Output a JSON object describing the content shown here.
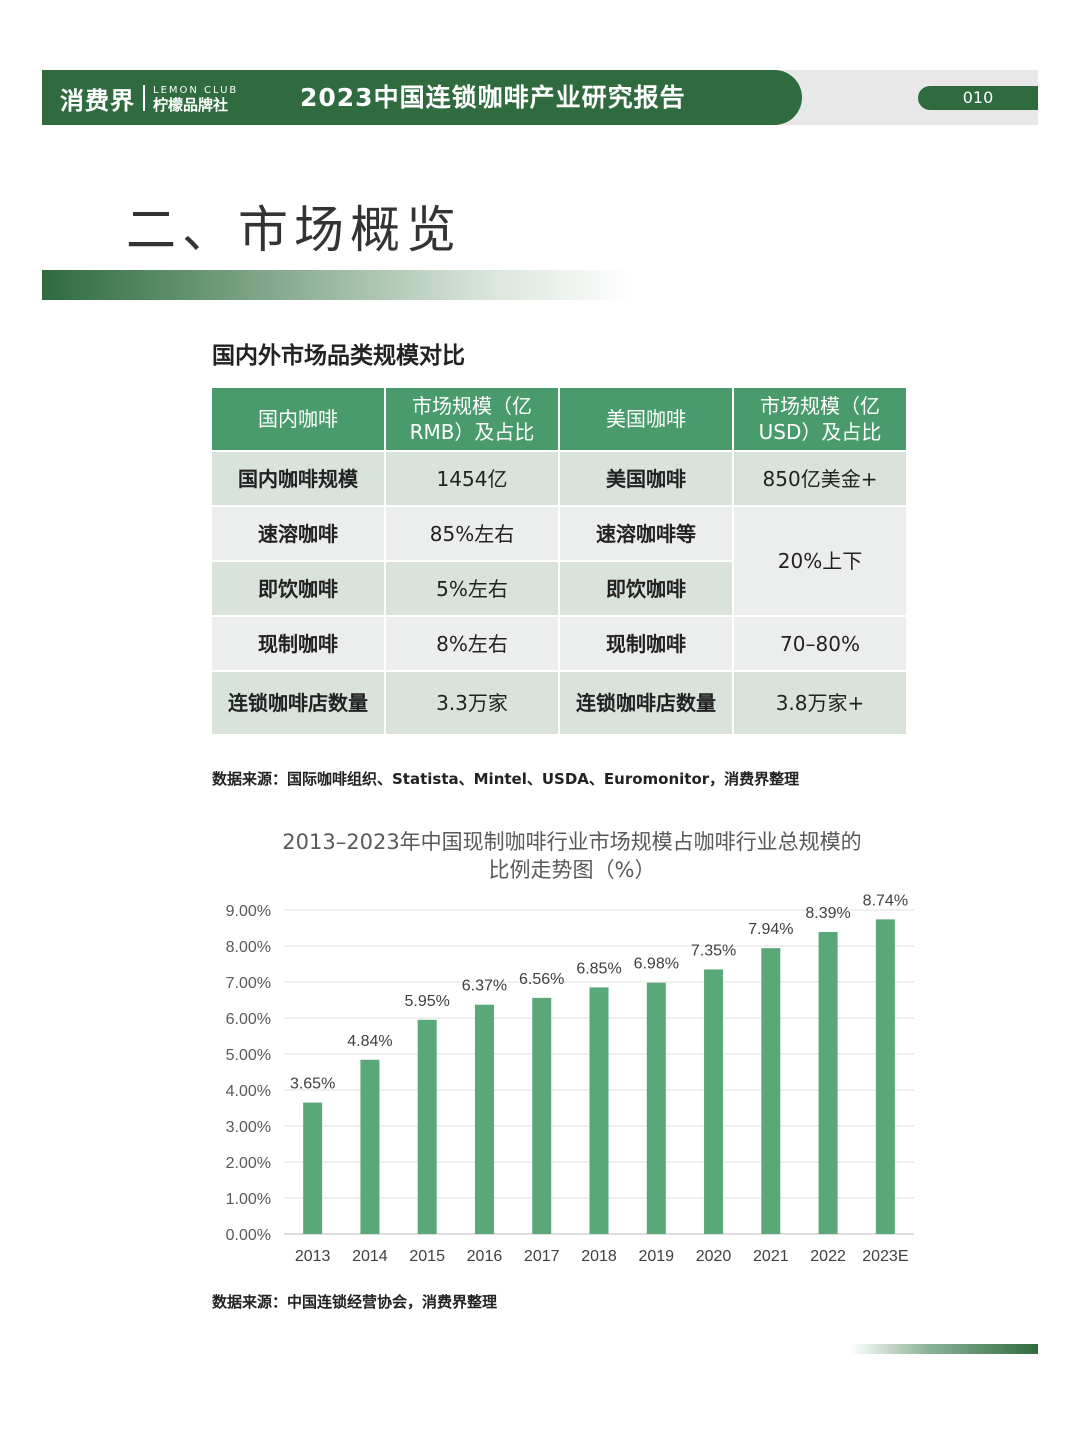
{
  "header": {
    "logo_main": "消费界",
    "logo_en": "LEMON CLUB",
    "logo_cn": "柠檬品牌社",
    "title": "2023中国连锁咖啡产业研究报告",
    "page_number": "010"
  },
  "section": {
    "title": "二、市场概览"
  },
  "table": {
    "title": "国内外市场品类规模对比",
    "headers": [
      "国内咖啡",
      "市场规模（亿RMB）及占比",
      "美国咖啡",
      "市场规模（亿USD）及占比"
    ],
    "rows": [
      [
        "国内咖啡规模",
        "1454亿",
        "美国咖啡",
        "850亿美金+"
      ],
      [
        "速溶咖啡",
        "85%左右",
        "速溶咖啡等",
        "20%上下"
      ],
      [
        "即饮咖啡",
        "5%左右",
        "即饮咖啡",
        ""
      ],
      [
        "现制咖啡",
        "8%左右",
        "现制咖啡",
        "70–80%"
      ],
      [
        "连锁咖啡店数量",
        "3.3万家",
        "连锁咖啡店数量",
        "3.8万家+"
      ]
    ],
    "source": "数据来源：国际咖啡组织、Statista、Mintel、USDA、Euromonitor，消费界整理"
  },
  "chart_data": {
    "type": "bar",
    "title": "2013–2023年中国现制咖啡行业市场规模占咖啡行业总规模的比例走势图（%）",
    "categories": [
      "2013",
      "2014",
      "2015",
      "2016",
      "2017",
      "2018",
      "2019",
      "2020",
      "2021",
      "2022",
      "2023E"
    ],
    "values": [
      3.65,
      4.84,
      5.95,
      6.37,
      6.56,
      6.85,
      6.98,
      7.35,
      7.94,
      8.39,
      8.74
    ],
    "value_labels": [
      "3.65%",
      "4.84%",
      "5.95%",
      "6.37%",
      "6.56%",
      "6.85%",
      "6.98%",
      "7.35%",
      "7.94%",
      "8.39%",
      "8.74%"
    ],
    "y_ticks": [
      "0.00%",
      "1.00%",
      "2.00%",
      "3.00%",
      "4.00%",
      "5.00%",
      "6.00%",
      "7.00%",
      "8.00%",
      "9.00%"
    ],
    "ylim": [
      0,
      9
    ],
    "grid": true,
    "bar_color": "#5aa878"
  },
  "chart_source": "数据来源：中国连锁经营协会，消费界整理"
}
